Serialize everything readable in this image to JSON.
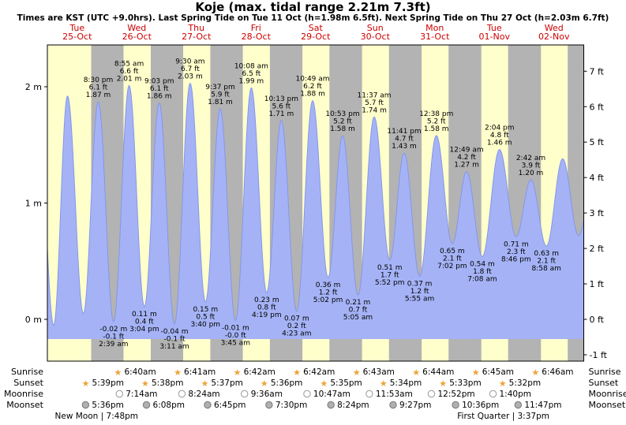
{
  "title": "Koje (max. tidal range 2.21m 7.3ft)",
  "subtitle": "Times are KST (UTC +9.0hrs). Last Spring Tide on Tue 11 Oct (h=1.98m 6.5ft). Next Spring Tide on Thu 27 Oct (h=2.03m 6.7ft)",
  "colors": {
    "day_bg": "#ffffcc",
    "night_bg": "#b3b3b3",
    "water_fill": "#a5b3f6",
    "water_line": "#8496ea",
    "day_label": "#cc0000",
    "star": "#eda338",
    "moon_open_fill": "#ffffff",
    "moon_open_stroke": "#999999",
    "moon_full_fill": "#b0b0b0",
    "moon_full_stroke": "#777777"
  },
  "chart_data": {
    "type": "area",
    "title": "Koje (max. tidal range 2.21m 7.3ft)",
    "x_axis": "time, 9 days from Tue 25-Oct 00:00 to Wed 02-Nov 24:00 (KST)",
    "ylim_m": [
      -0.36,
      2.36
    ],
    "night_shading": "sunset-to-sunrise gray bands",
    "days": [
      {
        "name": "Tue",
        "date": "25-Oct"
      },
      {
        "name": "Wed",
        "date": "26-Oct"
      },
      {
        "name": "Thu",
        "date": "27-Oct"
      },
      {
        "name": "Fri",
        "date": "28-Oct"
      },
      {
        "name": "Sat",
        "date": "29-Oct"
      },
      {
        "name": "Sun",
        "date": "30-Oct"
      },
      {
        "name": "Mon",
        "date": "31-Oct"
      },
      {
        "name": "Tue",
        "date": "01-Nov"
      },
      {
        "name": "Wed",
        "date": "02-Nov"
      }
    ],
    "y_axis_left": {
      "unit": "m",
      "ticks": [
        {
          "v": 0,
          "label": "0 m"
        },
        {
          "v": 1,
          "label": "1 m"
        },
        {
          "v": 2,
          "label": "2 m"
        }
      ]
    },
    "y_axis_right": {
      "unit": "ft",
      "ticks": [
        {
          "v": -1,
          "label": "-1 ft"
        },
        {
          "v": 0,
          "label": "0 ft"
        },
        {
          "v": 1,
          "label": "1 ft"
        },
        {
          "v": 2,
          "label": "2 ft"
        },
        {
          "v": 3,
          "label": "3 ft"
        },
        {
          "v": 4,
          "label": "4 ft"
        },
        {
          "v": 5,
          "label": "5 ft"
        },
        {
          "v": 6,
          "label": "6 ft"
        },
        {
          "v": 7,
          "label": "7 ft"
        }
      ]
    },
    "tide_extremes": [
      {
        "day": -1,
        "time": "8:12 pm",
        "type": "high",
        "h": 1.85,
        "labeled": false
      },
      {
        "day": 0,
        "time": "2:33 am",
        "type": "low",
        "h": -0.05,
        "labeled": false
      },
      {
        "day": 0,
        "time": "8:06 am",
        "type": "high",
        "h": 1.92,
        "labeled": false
      },
      {
        "day": 0,
        "time": "2:30 pm",
        "type": "low",
        "h": 0.05,
        "labeled": false
      },
      {
        "day": 0,
        "time": "8:30 pm",
        "type": "high",
        "h": 1.87,
        "m": "1.87",
        "ft": "6.1",
        "labeled": true
      },
      {
        "day": 1,
        "time": "2:39 am",
        "type": "low",
        "h": -0.02,
        "m": "-0.02",
        "ft": "-0.1",
        "labeled": true
      },
      {
        "day": 1,
        "time": "8:55 am",
        "type": "high",
        "h": 2.01,
        "m": "2.01",
        "ft": "6.6",
        "labeled": true
      },
      {
        "day": 1,
        "time": "3:04 pm",
        "type": "low",
        "h": 0.11,
        "m": "0.11",
        "ft": "0.4",
        "labeled": true
      },
      {
        "day": 1,
        "time": "9:03 pm",
        "type": "high",
        "h": 1.86,
        "m": "1.86",
        "ft": "6.1",
        "labeled": true
      },
      {
        "day": 2,
        "time": "3:11 am",
        "type": "low",
        "h": -0.04,
        "m": "-0.04",
        "ft": "-0.1",
        "labeled": true
      },
      {
        "day": 2,
        "time": "9:30 am",
        "type": "high",
        "h": 2.03,
        "m": "2.03",
        "ft": "6.7",
        "labeled": true
      },
      {
        "day": 2,
        "time": "3:40 pm",
        "type": "low",
        "h": 0.15,
        "m": "0.15",
        "ft": "0.5",
        "labeled": true
      },
      {
        "day": 2,
        "time": "9:37 pm",
        "type": "high",
        "h": 1.81,
        "m": "1.81",
        "ft": "5.9",
        "labeled": true
      },
      {
        "day": 3,
        "time": "3:45 am",
        "type": "low",
        "h": -0.01,
        "m": "-0.01",
        "ft": "-0.0",
        "labeled": true
      },
      {
        "day": 3,
        "time": "10:08 am",
        "type": "high",
        "h": 1.99,
        "m": "1.99",
        "ft": "6.5",
        "labeled": true
      },
      {
        "day": 3,
        "time": "4:19 pm",
        "type": "low",
        "h": 0.23,
        "m": "0.23",
        "ft": "0.8",
        "labeled": true
      },
      {
        "day": 3,
        "time": "10:13 pm",
        "type": "high",
        "h": 1.71,
        "m": "1.71",
        "ft": "5.6",
        "labeled": true
      },
      {
        "day": 4,
        "time": "4:23 am",
        "type": "low",
        "h": 0.07,
        "m": "0.07",
        "ft": "0.2",
        "labeled": true
      },
      {
        "day": 4,
        "time": "10:49 am",
        "type": "high",
        "h": 1.88,
        "m": "1.88",
        "ft": "6.2",
        "labeled": true
      },
      {
        "day": 4,
        "time": "5:02 pm",
        "type": "low",
        "h": 0.36,
        "m": "0.36",
        "ft": "1.2",
        "labeled": true
      },
      {
        "day": 4,
        "time": "10:53 pm",
        "type": "high",
        "h": 1.58,
        "m": "1.58",
        "ft": "5.2",
        "labeled": true
      },
      {
        "day": 5,
        "time": "5:05 am",
        "type": "low",
        "h": 0.21,
        "m": "0.21",
        "ft": "0.7",
        "labeled": true
      },
      {
        "day": 5,
        "time": "11:37 am",
        "type": "high",
        "h": 1.74,
        "m": "1.74",
        "ft": "5.7",
        "labeled": true
      },
      {
        "day": 5,
        "time": "5:52 pm",
        "type": "low",
        "h": 0.51,
        "m": "0.51",
        "ft": "1.7",
        "labeled": true
      },
      {
        "day": 5,
        "time": "11:41 pm",
        "type": "high",
        "h": 1.43,
        "m": "1.43",
        "ft": "4.7",
        "labeled": true
      },
      {
        "day": 6,
        "time": "5:55 am",
        "type": "low",
        "h": 0.37,
        "m": "0.37",
        "ft": "1.2",
        "labeled": true
      },
      {
        "day": 6,
        "time": "12:38 pm",
        "type": "high",
        "h": 1.58,
        "m": "1.58",
        "ft": "5.2",
        "labeled": true
      },
      {
        "day": 6,
        "time": "7:02 pm",
        "type": "low",
        "h": 0.65,
        "m": "0.65",
        "ft": "2.1",
        "labeled": true
      },
      {
        "day": 7,
        "time": "12:49 am",
        "type": "high",
        "h": 1.27,
        "m": "1.27",
        "ft": "4.2",
        "labeled": true
      },
      {
        "day": 7,
        "time": "7:08 am",
        "type": "low",
        "h": 0.54,
        "m": "0.54",
        "ft": "1.8",
        "labeled": true
      },
      {
        "day": 7,
        "time": "2:04 pm",
        "type": "high",
        "h": 1.46,
        "m": "1.46",
        "ft": "4.8",
        "labeled": true
      },
      {
        "day": 7,
        "time": "8:46 pm",
        "type": "low",
        "h": 0.71,
        "m": "0.71",
        "ft": "2.3",
        "labeled": true
      },
      {
        "day": 8,
        "time": "2:42 am",
        "type": "high",
        "h": 1.2,
        "m": "1.20",
        "ft": "3.9",
        "labeled": true
      },
      {
        "day": 8,
        "time": "8:58 am",
        "type": "low",
        "h": 0.63,
        "m": "0.63",
        "ft": "2.1",
        "labeled": true
      },
      {
        "day": 8,
        "time": "3:30 pm",
        "type": "high",
        "h": 1.38,
        "labeled": false
      },
      {
        "day": 8,
        "time": "9:54 pm",
        "type": "low",
        "h": 0.72,
        "labeled": false
      },
      {
        "day": 9,
        "time": "3:30 am",
        "type": "high",
        "h": 1.15,
        "labeled": false
      }
    ]
  },
  "astro": {
    "row_labels": [
      "Sunrise",
      "Sunset",
      "Moonrise",
      "Moonset"
    ],
    "sunrise": [
      {
        "day": 1,
        "time": "6:40am"
      },
      {
        "day": 2,
        "time": "6:41am"
      },
      {
        "day": 3,
        "time": "6:42am"
      },
      {
        "day": 4,
        "time": "6:42am"
      },
      {
        "day": 5,
        "time": "6:43am"
      },
      {
        "day": 6,
        "time": "6:44am"
      },
      {
        "day": 7,
        "time": "6:45am"
      },
      {
        "day": 8,
        "time": "6:46am"
      }
    ],
    "sunset": [
      {
        "day": 0,
        "time": "5:39pm"
      },
      {
        "day": 1,
        "time": "5:38pm"
      },
      {
        "day": 2,
        "time": "5:37pm"
      },
      {
        "day": 3,
        "time": "5:36pm"
      },
      {
        "day": 4,
        "time": "5:35pm"
      },
      {
        "day": 5,
        "time": "5:34pm"
      },
      {
        "day": 6,
        "time": "5:33pm"
      },
      {
        "day": 7,
        "time": "5:32pm"
      }
    ],
    "moonrise": [
      {
        "day": 1,
        "time": "7:14am"
      },
      {
        "day": 2,
        "time": "8:24am"
      },
      {
        "day": 3,
        "time": "9:36am"
      },
      {
        "day": 4,
        "time": "10:47am"
      },
      {
        "day": 5,
        "time": "11:53am"
      },
      {
        "day": 6,
        "time": "12:52pm"
      },
      {
        "day": 7,
        "time": "1:40pm"
      }
    ],
    "moonset": [
      {
        "day": 0,
        "time": "5:36pm"
      },
      {
        "day": 1,
        "time": "6:08pm"
      },
      {
        "day": 2,
        "time": "6:45pm"
      },
      {
        "day": 3,
        "time": "7:30pm"
      },
      {
        "day": 4,
        "time": "8:24pm"
      },
      {
        "day": 5,
        "time": "9:27pm"
      },
      {
        "day": 6,
        "time": "10:36pm"
      },
      {
        "day": 7,
        "time": "11:47pm"
      }
    ],
    "moon_phases": [
      {
        "day": 0,
        "time": "7:48pm",
        "label": "New Moon | 7:48pm"
      },
      {
        "day": 7,
        "time": "3:37pm",
        "label": "First Quarter | 3:37pm"
      }
    ]
  }
}
